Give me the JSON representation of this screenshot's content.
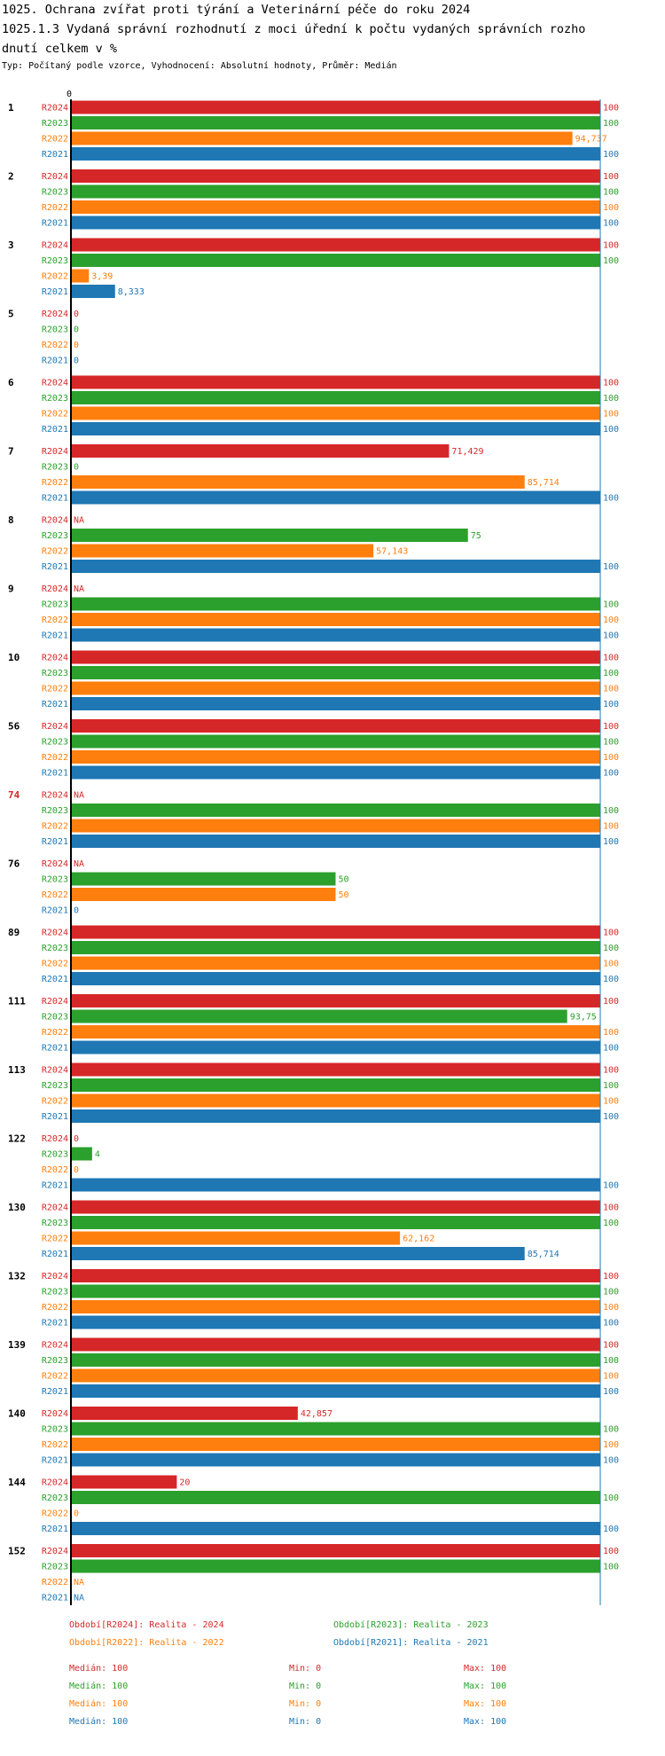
{
  "header": {
    "title_line1": "1025. Ochrana zvířat proti týrání a Veterinární péče do roku 2024",
    "title_line2": "1025.1.3 Vydaná správní rozhodnutí z moci úřední k počtu vydaných správních rozho",
    "title_line3": "dnutí celkem v %",
    "subtitle": "Typ: Počítaný podle vzorce, Vyhodnocení: Absolutní hodnoty, Průměr: Medián"
  },
  "colors": {
    "R2024": "#d62728",
    "R2023": "#2ca02c",
    "R2022": "#ff7f0e",
    "R2021": "#1f77b4",
    "highlight": "#d62728",
    "axis": "#000000",
    "max_line": "#1f77b4"
  },
  "chart_data": {
    "type": "bar",
    "orientation": "horizontal",
    "axis_zero_label": "0",
    "xlim": [
      0,
      100
    ],
    "series_names": [
      "R2024",
      "R2023",
      "R2022",
      "R2021"
    ],
    "groups": [
      {
        "label": "1",
        "highlight": false,
        "values": [
          100,
          100,
          94.737,
          100
        ],
        "labels": [
          "100",
          "100",
          "94,737",
          "100"
        ]
      },
      {
        "label": "2",
        "highlight": false,
        "values": [
          100,
          100,
          100,
          100
        ],
        "labels": [
          "100",
          "100",
          "100",
          "100"
        ]
      },
      {
        "label": "3",
        "highlight": false,
        "values": [
          100,
          100,
          3.39,
          8.333
        ],
        "labels": [
          "100",
          "100",
          "3,39",
          "8,333"
        ]
      },
      {
        "label": "5",
        "highlight": false,
        "values": [
          0,
          0,
          0,
          0
        ],
        "labels": [
          "0",
          "0",
          "0",
          "0"
        ]
      },
      {
        "label": "6",
        "highlight": false,
        "values": [
          100,
          100,
          100,
          100
        ],
        "labels": [
          "100",
          "100",
          "100",
          "100"
        ]
      },
      {
        "label": "7",
        "highlight": false,
        "values": [
          71.429,
          0,
          85.714,
          100
        ],
        "labels": [
          "71,429",
          "0",
          "85,714",
          "100"
        ]
      },
      {
        "label": "8",
        "highlight": false,
        "values": [
          null,
          75,
          57.143,
          100
        ],
        "labels": [
          "NA",
          "75",
          "57,143",
          "100"
        ]
      },
      {
        "label": "9",
        "highlight": false,
        "values": [
          null,
          100,
          100,
          100
        ],
        "labels": [
          "NA",
          "100",
          "100",
          "100"
        ]
      },
      {
        "label": "10",
        "highlight": false,
        "values": [
          100,
          100,
          100,
          100
        ],
        "labels": [
          "100",
          "100",
          "100",
          "100"
        ]
      },
      {
        "label": "56",
        "highlight": false,
        "values": [
          100,
          100,
          100,
          100
        ],
        "labels": [
          "100",
          "100",
          "100",
          "100"
        ]
      },
      {
        "label": "74",
        "highlight": true,
        "values": [
          null,
          100,
          100,
          100
        ],
        "labels": [
          "NA",
          "100",
          "100",
          "100"
        ]
      },
      {
        "label": "76",
        "highlight": false,
        "values": [
          null,
          50,
          50,
          0
        ],
        "labels": [
          "NA",
          "50",
          "50",
          "0"
        ]
      },
      {
        "label": "89",
        "highlight": false,
        "values": [
          100,
          100,
          100,
          100
        ],
        "labels": [
          "100",
          "100",
          "100",
          "100"
        ]
      },
      {
        "label": "111",
        "highlight": false,
        "values": [
          100,
          93.75,
          100,
          100
        ],
        "labels": [
          "100",
          "93,75",
          "100",
          "100"
        ]
      },
      {
        "label": "113",
        "highlight": false,
        "values": [
          100,
          100,
          100,
          100
        ],
        "labels": [
          "100",
          "100",
          "100",
          "100"
        ]
      },
      {
        "label": "122",
        "highlight": false,
        "values": [
          0,
          4,
          0,
          100
        ],
        "labels": [
          "0",
          "4",
          "0",
          "100"
        ]
      },
      {
        "label": "130",
        "highlight": false,
        "values": [
          100,
          100,
          62.162,
          85.714
        ],
        "labels": [
          "100",
          "100",
          "62,162",
          "85,714"
        ]
      },
      {
        "label": "132",
        "highlight": false,
        "values": [
          100,
          100,
          100,
          100
        ],
        "labels": [
          "100",
          "100",
          "100",
          "100"
        ]
      },
      {
        "label": "139",
        "highlight": false,
        "values": [
          100,
          100,
          100,
          100
        ],
        "labels": [
          "100",
          "100",
          "100",
          "100"
        ]
      },
      {
        "label": "140",
        "highlight": false,
        "values": [
          42.857,
          100,
          100,
          100
        ],
        "labels": [
          "42,857",
          "100",
          "100",
          "100"
        ]
      },
      {
        "label": "144",
        "highlight": false,
        "values": [
          20,
          100,
          0,
          100
        ],
        "labels": [
          "20",
          "100",
          "0",
          "100"
        ]
      },
      {
        "label": "152",
        "highlight": false,
        "values": [
          100,
          100,
          null,
          null
        ],
        "labels": [
          "100",
          "100",
          "NA",
          "NA"
        ]
      }
    ],
    "legend": [
      {
        "series": "R2024",
        "text": "Období[R2024]: Realita - 2024"
      },
      {
        "series": "R2023",
        "text": "Období[R2023]: Realita - 2023"
      },
      {
        "series": "R2022",
        "text": "Období[R2022]: Realita - 2022"
      },
      {
        "series": "R2021",
        "text": "Období[R2021]: Realita - 2021"
      }
    ],
    "stats": [
      {
        "series": "R2024",
        "median": "Medián: 100",
        "min": "Min: 0",
        "max": "Max: 100"
      },
      {
        "series": "R2023",
        "median": "Medián: 100",
        "min": "Min: 0",
        "max": "Max: 100"
      },
      {
        "series": "R2022",
        "median": "Medián: 100",
        "min": "Min: 0",
        "max": "Max: 100"
      },
      {
        "series": "R2021",
        "median": "Medián: 100",
        "min": "Min: 0",
        "max": "Max: 100"
      }
    ]
  }
}
